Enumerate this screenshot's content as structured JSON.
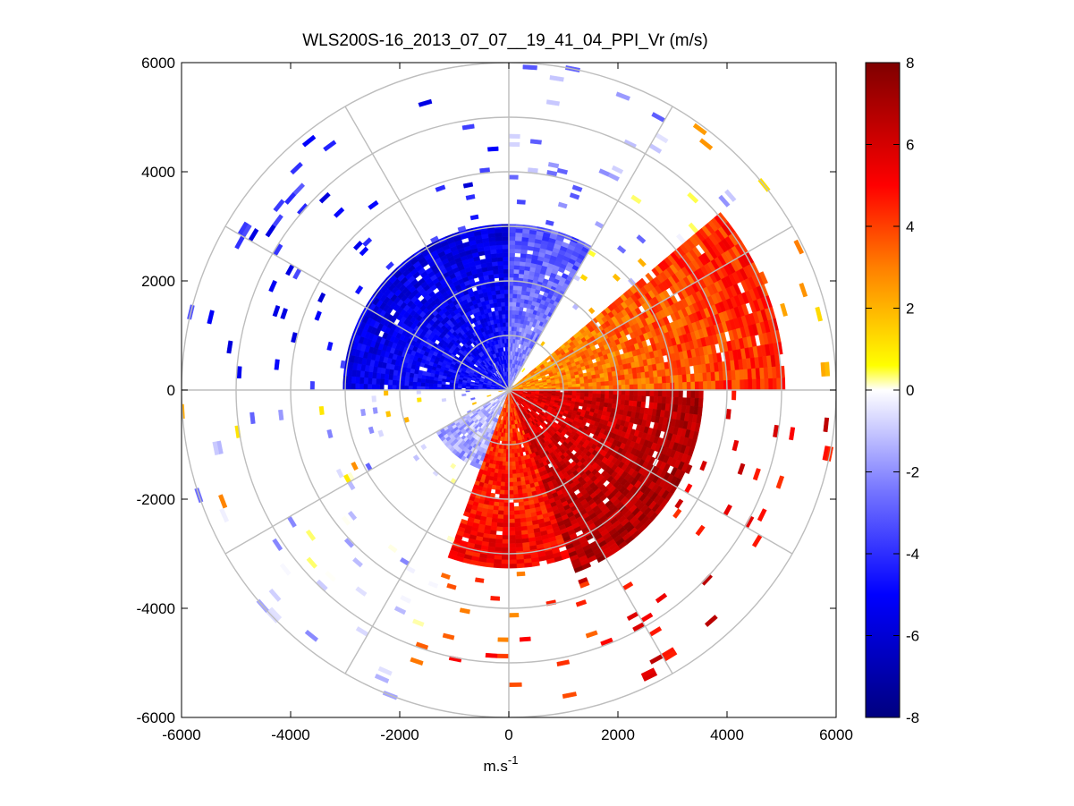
{
  "chart_data": {
    "type": "heatmap",
    "subtype": "polar PPI scan",
    "title": "WLS200S-16_2013_07_07__19_41_04_PPI_Vr (m/s)",
    "xlabel": "m.s",
    "xlabel_superscript": "-1",
    "ylabel": "",
    "xlim": [
      -6000,
      6000
    ],
    "ylim": [
      -6000,
      6000
    ],
    "x_ticks": [
      -6000,
      -4000,
      -2000,
      0,
      2000,
      4000,
      6000
    ],
    "y_ticks": [
      6000,
      4000,
      2000,
      0,
      -2000,
      -4000,
      -6000
    ],
    "polar_grid": {
      "range_rings": [
        1000,
        2000,
        3000,
        4000,
        5000,
        6000
      ],
      "spokes_deg": [
        0,
        30,
        60,
        90,
        120,
        150,
        180,
        210,
        240,
        270,
        300,
        330
      ],
      "color": "#bdbdbd"
    },
    "colorbar": {
      "range": [
        -8,
        8
      ],
      "ticks": [
        8,
        6,
        4,
        2,
        0,
        -2,
        -4,
        -6,
        -8
      ],
      "colormap": "blue-white-yellow-red",
      "stops": [
        {
          "v": -8,
          "color": "#00007f"
        },
        {
          "v": -5,
          "color": "#0000ff"
        },
        {
          "v": -2.5,
          "color": "#7373ff"
        },
        {
          "v": 0,
          "color": "#ffffff"
        },
        {
          "v": 0.6,
          "color": "#ffff00"
        },
        {
          "v": 3,
          "color": "#ff7f00"
        },
        {
          "v": 5,
          "color": "#ff0000"
        },
        {
          "v": 8,
          "color": "#7f0000"
        }
      ]
    },
    "velocity_field": {
      "units": "m/s",
      "description_regions": [
        {
          "azimuth_deg": [
            270,
            360
          ],
          "range_m": [
            0,
            3000
          ],
          "vr": -4.5
        },
        {
          "azimuth_deg": [
            0,
            30
          ],
          "range_m": [
            0,
            3000
          ],
          "vr": -2.0
        },
        {
          "azimuth_deg": [
            50,
            90
          ],
          "range_m": [
            0,
            5000
          ],
          "vr": 2.5
        },
        {
          "azimuth_deg": [
            90,
            160
          ],
          "range_m": [
            0,
            3500
          ],
          "vr": 5.5
        },
        {
          "azimuth_deg": [
            160,
            200
          ],
          "range_m": [
            0,
            3200
          ],
          "vr": 4.0
        },
        {
          "azimuth_deg": [
            200,
            240
          ],
          "range_m": [
            0,
            1500
          ],
          "vr": -1.0
        }
      ]
    }
  }
}
